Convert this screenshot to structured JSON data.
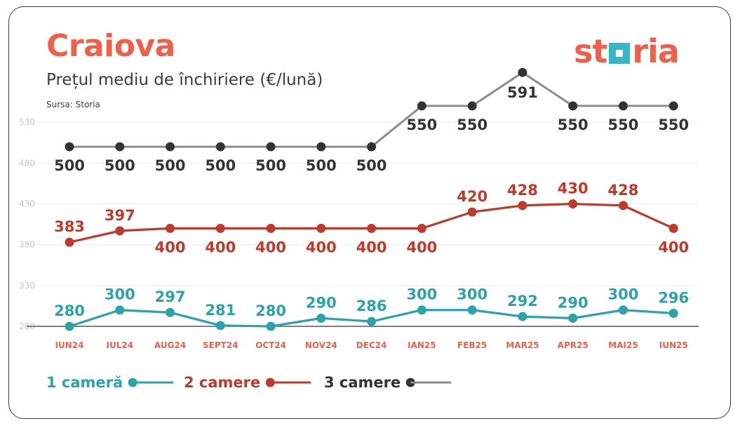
{
  "colors": {
    "accent": "#ef5f4a",
    "teal": "#2aa3ad",
    "red": "#c0392b",
    "dark": "#333333",
    "grey_line": "#8c8c8c",
    "tick": "#c7c7c7",
    "logo_box": "#36b6c8"
  },
  "header": {
    "title": "Craiova",
    "subtitle": "Prețul mediu de închiriere (€/lună)",
    "source": "Sursa: Storia"
  },
  "logo": {
    "part1": "st",
    "part2": "ria"
  },
  "chart_data": {
    "type": "line",
    "categories": [
      "IUN24",
      "IUL24",
      "AUG24",
      "SEPT24",
      "OCT24",
      "NOV24",
      "DEC24",
      "IAN25",
      "FEB25",
      "MAR25",
      "APR25",
      "MAI25",
      "IUN25"
    ],
    "series": [
      {
        "name": "1 cameră",
        "values": [
          280,
          300,
          297,
          281,
          280,
          290,
          286,
          300,
          300,
          292,
          290,
          300,
          296
        ]
      },
      {
        "name": "2 camere",
        "values": [
          383,
          397,
          400,
          400,
          400,
          400,
          400,
          400,
          420,
          428,
          430,
          428,
          400
        ]
      },
      {
        "name": "3 camere",
        "values": [
          500,
          500,
          500,
          500,
          500,
          500,
          500,
          550,
          550,
          591,
          550,
          550,
          550
        ]
      }
    ],
    "y_ticks": [
      280,
      330,
      380,
      430,
      480,
      530
    ],
    "ylim": [
      280,
      591
    ],
    "grid": true,
    "legend_position": "bottom-left"
  }
}
